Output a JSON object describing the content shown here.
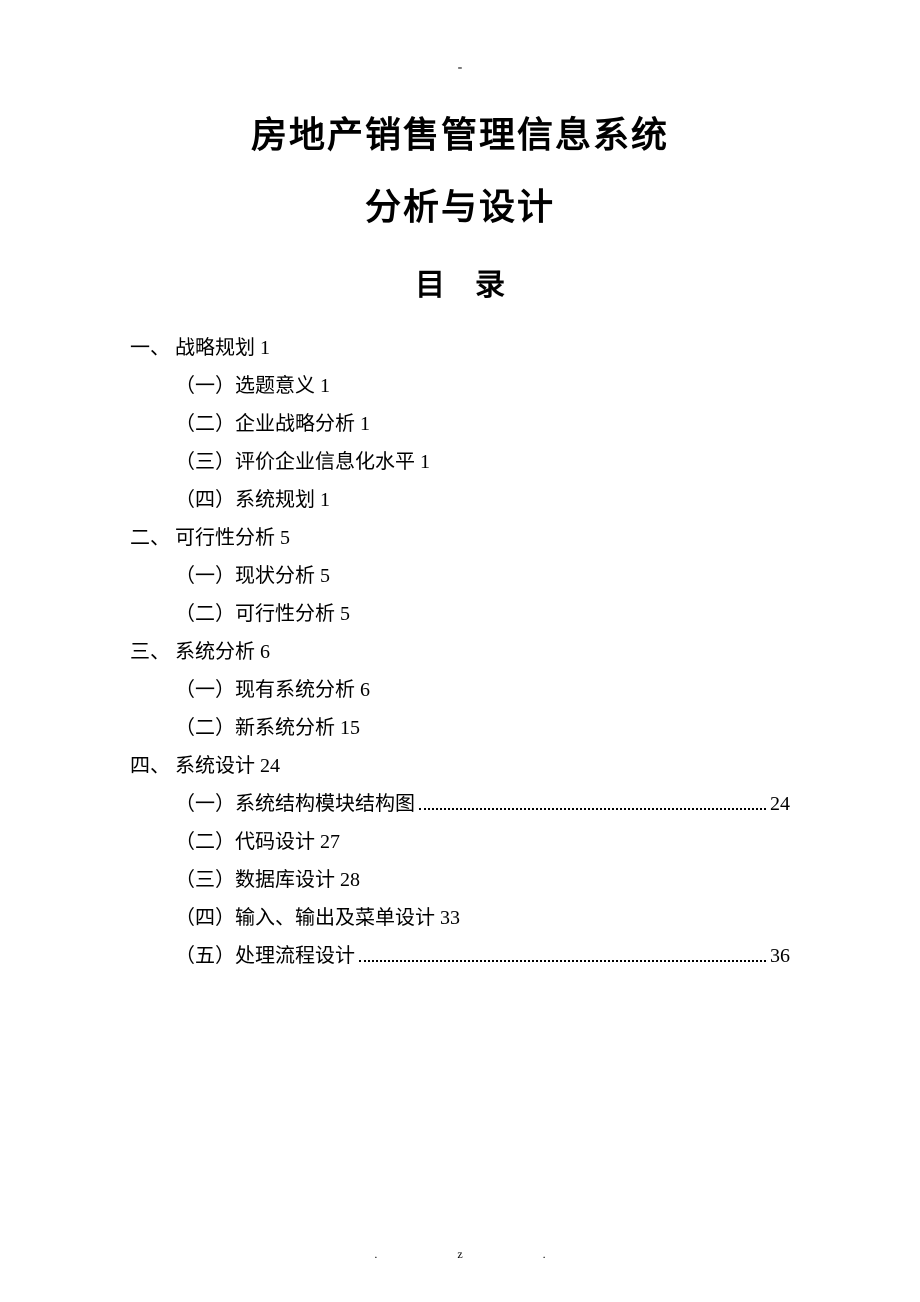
{
  "header_mark": "-",
  "title_line1": "房地产销售管理信息系统",
  "title_line2": "分析与设计",
  "toc_title": "目录",
  "sections": [
    {
      "label": "一、 战略规划 1",
      "items": [
        {
          "label": "（一）选题意义 1",
          "dotted": false,
          "page": ""
        },
        {
          "label": "（二）企业战略分析 1",
          "dotted": false,
          "page": ""
        },
        {
          "label": "（三）评价企业信息化水平 1",
          "dotted": false,
          "page": ""
        },
        {
          "label": "（四）系统规划 1",
          "dotted": false,
          "page": ""
        }
      ]
    },
    {
      "label": "二、 可行性分析 5",
      "items": [
        {
          "label": "（一）现状分析 5",
          "dotted": false,
          "page": ""
        },
        {
          "label": "（二）可行性分析 5",
          "dotted": false,
          "page": ""
        }
      ]
    },
    {
      "label": "三、 系统分析 6",
      "items": [
        {
          "label": "（一）现有系统分析 6",
          "dotted": false,
          "page": ""
        },
        {
          "label": "（二）新系统分析 15",
          "dotted": false,
          "page": ""
        }
      ]
    },
    {
      "label": "四、 系统设计 24",
      "items": [
        {
          "label": "（一）系统结构模块结构图",
          "dotted": true,
          "page": "24"
        },
        {
          "label": "（二）代码设计 27",
          "dotted": false,
          "page": ""
        },
        {
          "label": "（三）数据库设计 28",
          "dotted": false,
          "page": ""
        },
        {
          "label": "（四）输入、输出及菜单设计 33",
          "dotted": false,
          "page": ""
        },
        {
          "label": "（五）处理流程设计",
          "dotted": true,
          "page": "36"
        }
      ]
    }
  ],
  "footer_left": ".",
  "footer_right": "z."
}
